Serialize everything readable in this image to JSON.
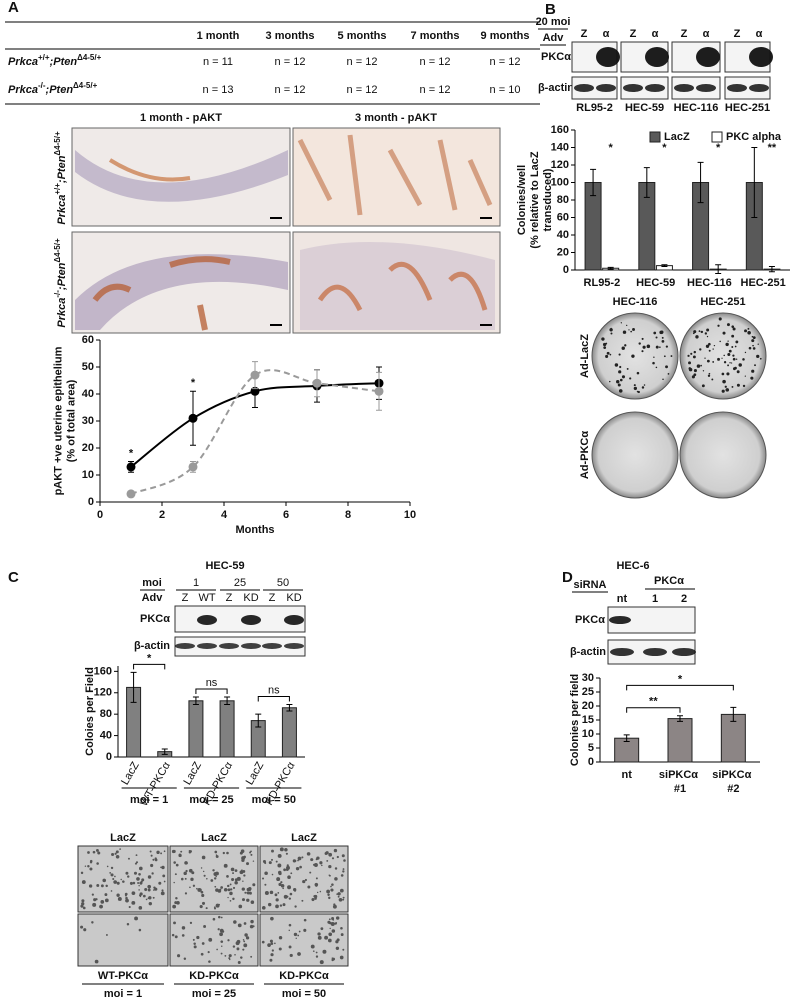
{
  "panel_labels": [
    "A",
    "B",
    "C",
    "D"
  ],
  "panel_a": {
    "table": {
      "columns": [
        "1 month",
        "3 months",
        "5 months",
        "7 months",
        "9 months"
      ],
      "rows": [
        {
          "genotype": [
            "Prkca",
            "+/+",
            ";Pten",
            "Δ4-5/+"
          ],
          "cells": [
            "n = 11",
            "n = 12",
            "n = 12",
            "n = 12",
            "n = 12"
          ]
        },
        {
          "genotype": [
            "Prkca",
            "-/-",
            ";Pten",
            "Δ4-5/+"
          ],
          "cells": [
            "n = 13",
            "n = 12",
            "n = 12",
            "n = 12",
            "n = 10"
          ]
        }
      ]
    },
    "histology": {
      "columns": [
        "1 month - pAKT",
        "3 month - pAKT"
      ],
      "rows": [
        [
          "Prkca",
          "+/+",
          ";Pten",
          "Δ4-5/+"
        ],
        [
          "Prkca",
          "-/-",
          ";Pten",
          "Δ4-5/+"
        ]
      ]
    }
  },
  "panel_b": {
    "blot": {
      "moi": "20 moi",
      "adv": "Adv",
      "lanes": [
        "Z",
        "α",
        "Z",
        "α",
        "Z",
        "α",
        "Z",
        "α"
      ],
      "proteins": [
        "PKCα",
        "β-actin"
      ],
      "cell_lines": [
        "RL95-2",
        "HEC-59",
        "HEC-116",
        "HEC-251"
      ]
    },
    "plates": {
      "columns": [
        "HEC-116",
        "HEC-251"
      ],
      "rows": [
        "Ad-LacZ",
        "Ad-PKCα"
      ]
    }
  },
  "panel_c": {
    "title": "HEC-59",
    "blot": {
      "moi": "moi",
      "adv": "Adv",
      "doses": [
        "1",
        "25",
        "50"
      ],
      "lanes": [
        "Z",
        "WT",
        "Z",
        "KD",
        "Z",
        "KD"
      ],
      "proteins": [
        "PKCα",
        "β-actin"
      ]
    },
    "micrographs": {
      "top": [
        "LacZ",
        "LacZ",
        "LacZ"
      ],
      "bottom": [
        "WT-PKCα",
        "KD-PKCα",
        "KD-PKCα"
      ],
      "moi": [
        "moi = 1",
        "moi = 25",
        "moi = 50"
      ]
    }
  },
  "panel_d": {
    "title": "HEC-6",
    "blot": {
      "sirna": "siRNA",
      "target": "PKCα",
      "lanes": [
        "nt",
        "1",
        "2"
      ],
      "proteins": [
        "PKCα",
        "β-actin"
      ]
    }
  },
  "chart_data": [
    {
      "type": "line",
      "xlabel": "Months",
      "ylabel": [
        "pAKT +ve uterine epithelium",
        "(% of total area)"
      ],
      "xlim": [
        0,
        10
      ],
      "xticks": [
        0,
        2,
        4,
        6,
        8,
        10
      ],
      "ylim": [
        0,
        60
      ],
      "yticks": [
        0,
        10,
        20,
        30,
        40,
        50,
        60
      ],
      "series": [
        {
          "color": "#000000",
          "line_style": "solid",
          "x": [
            1,
            3,
            5,
            7,
            9
          ],
          "values": [
            13,
            31,
            41,
            43,
            44
          ],
          "errors": [
            2,
            10,
            6,
            6,
            6
          ]
        },
        {
          "color": "#9a9a9a",
          "line_style": "dashed",
          "x": [
            1,
            3,
            5,
            7,
            9
          ],
          "values": [
            3,
            13,
            47,
            44,
            41
          ],
          "errors": [
            1,
            2,
            5,
            5,
            7
          ]
        }
      ],
      "annotations": [
        {
          "text": "*",
          "x": 1
        },
        {
          "text": "*",
          "x": 3
        }
      ]
    },
    {
      "type": "bar",
      "ylabel": [
        "Colonies/well",
        "(% relative to LacZ",
        "transduced)"
      ],
      "categories": [
        "RL95-2",
        "HEC-59",
        "HEC-116",
        "HEC-251"
      ],
      "ylim": [
        0,
        160
      ],
      "yticks": [
        0,
        20,
        40,
        60,
        80,
        100,
        120,
        140,
        160
      ],
      "legend": "top-right",
      "series": [
        {
          "name": "LacZ",
          "color": "#595959",
          "values": [
            100,
            100,
            100,
            100
          ],
          "errors": [
            15,
            17,
            23,
            40
          ]
        },
        {
          "name": "PKC alpha",
          "color": "#ffffff",
          "values": [
            2,
            5,
            1,
            1
          ],
          "errors": [
            1,
            1,
            5,
            3
          ]
        }
      ],
      "annotations": [
        "*",
        "*",
        "*",
        "**"
      ]
    },
    {
      "type": "bar",
      "ylabel": [
        "Coloies per Field"
      ],
      "categories": [
        "LacZ",
        "WT-PKCα",
        "LacZ",
        "KD-PKCα",
        "LacZ",
        "KD-PKCα"
      ],
      "ylim": [
        0,
        170
      ],
      "yticks": [
        0,
        40,
        80,
        120,
        160
      ],
      "series": [
        {
          "color": "#808080",
          "values": [
            130,
            10,
            105,
            105,
            68,
            92
          ],
          "errors": [
            28,
            5,
            7,
            7,
            12,
            6
          ]
        }
      ],
      "comparisons": [
        {
          "text": "*",
          "pair": [
            0,
            1
          ]
        },
        {
          "text": "ns",
          "pair": [
            2,
            3
          ]
        },
        {
          "text": "ns",
          "pair": [
            4,
            5
          ]
        }
      ],
      "groups": [
        {
          "label": "moi = 1",
          "span": [
            0,
            1
          ]
        },
        {
          "label": "moi = 25",
          "span": [
            2,
            3
          ]
        },
        {
          "label": "moi = 50",
          "span": [
            4,
            5
          ]
        }
      ]
    },
    {
      "type": "bar",
      "ylabel": [
        "Colonies per field"
      ],
      "categories": [
        "nt",
        "siPKCα #1",
        "siPKCα #2"
      ],
      "ylim": [
        0,
        30
      ],
      "yticks": [
        0,
        5,
        10,
        15,
        20,
        25,
        30
      ],
      "series": [
        {
          "color": "#8c8585",
          "values": [
            8.5,
            15.5,
            17
          ],
          "errors": [
            1.2,
            1,
            2.5
          ]
        }
      ],
      "comparisons": [
        {
          "text": "**",
          "pair": [
            0,
            1
          ]
        },
        {
          "text": "*",
          "pair": [
            0,
            2
          ]
        }
      ]
    }
  ]
}
